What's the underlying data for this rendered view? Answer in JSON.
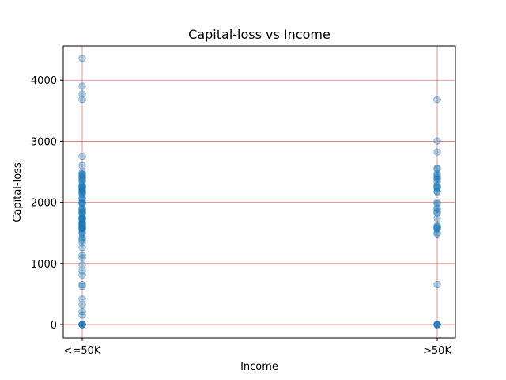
{
  "chart_data": {
    "type": "scatter",
    "title": "Capital-loss vs Income",
    "xlabel": "Income",
    "ylabel": "Capital-loss",
    "categories": [
      "<=50K",
      ">50K"
    ],
    "ylim": [
      -220,
      4560
    ],
    "yticks": [
      0,
      1000,
      2000,
      3000,
      4000
    ],
    "grid": true,
    "grid_color": "#e06666",
    "point_color": "#1f77b4",
    "series": [
      {
        "category": "<=50K",
        "values": [
          0,
          155,
          213,
          323,
          419,
          625,
          653,
          810,
          880,
          974,
          1092,
          1138,
          1258,
          1340,
          1380,
          1408,
          1429,
          1485,
          1504,
          1539,
          1564,
          1573,
          1579,
          1590,
          1594,
          1602,
          1617,
          1628,
          1648,
          1651,
          1668,
          1669,
          1672,
          1719,
          1721,
          1726,
          1735,
          1740,
          1741,
          1762,
          1816,
          1825,
          1844,
          1848,
          1876,
          1887,
          1902,
          1974,
          1980,
          2001,
          2002,
          2051,
          2057,
          2080,
          2129,
          2149,
          2163,
          2179,
          2201,
          2205,
          2231,
          2238,
          2246,
          2258,
          2267,
          2282,
          2339,
          2352,
          2377,
          2392,
          2415,
          2444,
          2457,
          2467,
          2489,
          2603,
          2754,
          3683,
          3770,
          3900,
          4356
        ]
      },
      {
        "category": ">50K",
        "values": [
          0,
          653,
          1485,
          1504,
          1564,
          1573,
          1590,
          1602,
          1617,
          1740,
          1825,
          1848,
          1887,
          1902,
          1977,
          2001,
          2174,
          2179,
          2231,
          2246,
          2258,
          2282,
          2339,
          2377,
          2392,
          2415,
          2444,
          2472,
          2547,
          2559,
          2824,
          3004,
          3683
        ]
      }
    ]
  }
}
